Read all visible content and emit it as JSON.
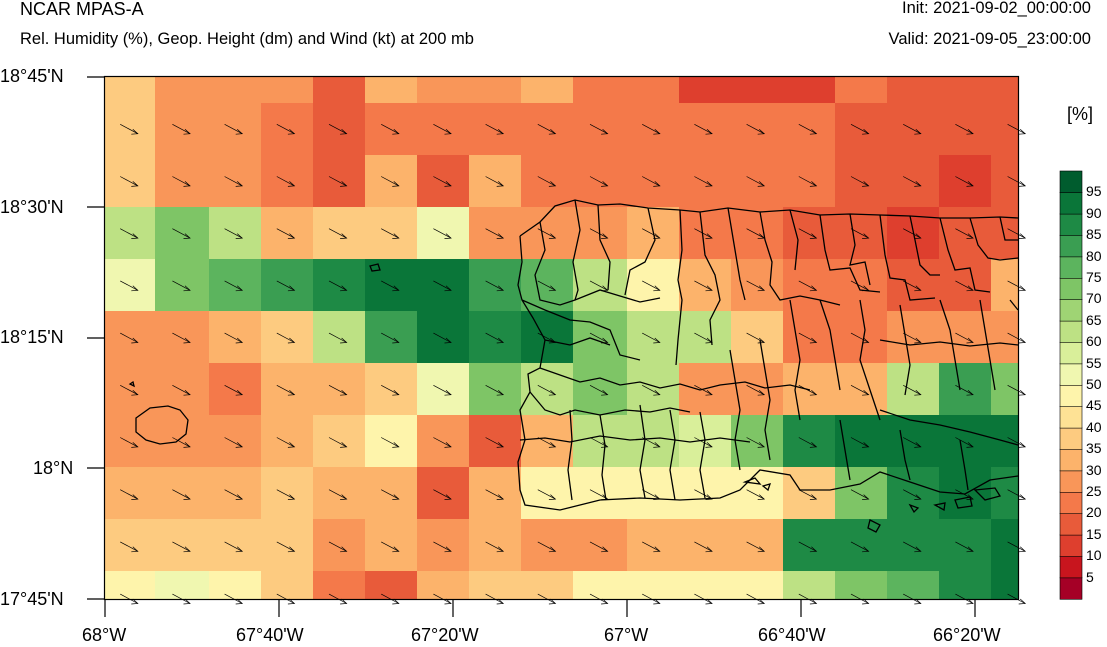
{
  "header": {
    "left_title": "NCAR MPAS-A",
    "left_subtitle": "Rel. Humidity (%), Geop. Height (dm) and Wind (kt) at 200 mb",
    "init": "Init: 2021-09-02_00:00:00",
    "valid": "Valid: 2021-09-05_23:00:00"
  },
  "axes": {
    "x_ticks": [
      "68°W",
      "67°40'W",
      "67°20'W",
      "67°W",
      "66°40'W",
      "66°20'W"
    ],
    "y_ticks": [
      "18°45'N",
      "18°30'N",
      "18°15'N",
      "18°N",
      "17°45'N"
    ]
  },
  "colorbar": {
    "unit": "[%]",
    "labels": [
      "5",
      "10",
      "15",
      "20",
      "25",
      "30",
      "35",
      "40",
      "45",
      "50",
      "55",
      "60",
      "65",
      "70",
      "75",
      "80",
      "85",
      "90",
      "95"
    ],
    "colors": [
      "#a50026",
      "#c8151e",
      "#de3f2e",
      "#e85b3a",
      "#f4794a",
      "#f99659",
      "#fcb36b",
      "#fdcb80",
      "#fee295",
      "#fef4ab",
      "#f0f7b0",
      "#d9ef9a",
      "#bde184",
      "#9fd474",
      "#7ec566",
      "#5cb45e",
      "#3a9e52",
      "#1e8a45",
      "#0a7639",
      "#005c2e"
    ]
  },
  "grid_colors": [
    "#fdcb80",
    "#f99659",
    "#f99659",
    "#f99659",
    "#e85b3a",
    "#fcb36b",
    "#f99659",
    "#f99659",
    "#fcb36b",
    "#f4794a",
    "#f4794a",
    "#de3f2e",
    "#de3f2e",
    "#de3f2e",
    "#f4794a",
    "#e85b3a",
    "#e85b3a",
    "#e85b3a",
    "#fdcb80",
    "#f99659",
    "#f99659",
    "#f4794a",
    "#e85b3a",
    "#f4794a",
    "#f4794a",
    "#f4794a",
    "#f4794a",
    "#f4794a",
    "#f4794a",
    "#f4794a",
    "#f4794a",
    "#f4794a",
    "#e85b3a",
    "#e85b3a",
    "#e85b3a",
    "#e85b3a",
    "#fdcb80",
    "#f99659",
    "#f99659",
    "#f4794a",
    "#e85b3a",
    "#fcb36b",
    "#e85b3a",
    "#fcb36b",
    "#f4794a",
    "#f4794a",
    "#f4794a",
    "#f4794a",
    "#f4794a",
    "#f4794a",
    "#e85b3a",
    "#e85b3a",
    "#de3f2e",
    "#e85b3a",
    "#bde184",
    "#7ec566",
    "#bde184",
    "#fcb36b",
    "#fdcb80",
    "#fdcb80",
    "#f0f7b0",
    "#f99659",
    "#f99659",
    "#f99659",
    "#fcb36b",
    "#f4794a",
    "#f4794a",
    "#e85b3a",
    "#e85b3a",
    "#de3f2e",
    "#e85b3a",
    "#e85b3a",
    "#f0f7b0",
    "#7ec566",
    "#5cb45e",
    "#3a9e52",
    "#1e8a45",
    "#0a7639",
    "#0a7639",
    "#3a9e52",
    "#5cb45e",
    "#bde184",
    "#fef4ab",
    "#fcb36b",
    "#f99659",
    "#f4794a",
    "#f4794a",
    "#e85b3a",
    "#e85b3a",
    "#fcb36b",
    "#f99659",
    "#f99659",
    "#fcb36b",
    "#fdcb80",
    "#bde184",
    "#3a9e52",
    "#0a7639",
    "#1e8a45",
    "#0a7639",
    "#7ec566",
    "#bde184",
    "#bde184",
    "#fdcb80",
    "#f4794a",
    "#f4794a",
    "#f99659",
    "#f99659",
    "#f99659",
    "#f99659",
    "#f99659",
    "#f4794a",
    "#fcb36b",
    "#fcb36b",
    "#fdcb80",
    "#f0f7b0",
    "#7ec566",
    "#bde184",
    "#7ec566",
    "#bde184",
    "#f99659",
    "#f99659",
    "#fcb36b",
    "#fcb36b",
    "#bde184",
    "#3a9e52",
    "#7ec566",
    "#f99659",
    "#f99659",
    "#f99659",
    "#fcb36b",
    "#fdcb80",
    "#fef4ab",
    "#f99659",
    "#e85b3a",
    "#fcb36b",
    "#bde184",
    "#bde184",
    "#d9ef9a",
    "#7ec566",
    "#1e8a45",
    "#0a7639",
    "#0a7639",
    "#0a7639",
    "#0a7639",
    "#fcb36b",
    "#fcb36b",
    "#fcb36b",
    "#fdcb80",
    "#fcb36b",
    "#fcb36b",
    "#e85b3a",
    "#fcb36b",
    "#fef4ab",
    "#fef4ab",
    "#fef4ab",
    "#fef4ab",
    "#fef4ab",
    "#fdcb80",
    "#7ec566",
    "#1e8a45",
    "#0a7639",
    "#1e8a45",
    "#fdcb80",
    "#fdcb80",
    "#fdcb80",
    "#fdcb80",
    "#f99659",
    "#fcb36b",
    "#f99659",
    "#fcb36b",
    "#f99659",
    "#f99659",
    "#fcb36b",
    "#fcb36b",
    "#fcb36b",
    "#1e8a45",
    "#1e8a45",
    "#1e8a45",
    "#1e8a45",
    "#0a7639",
    "#fef4ab",
    "#f0f7b0",
    "#fef4ab",
    "#fdcb80",
    "#f4794a",
    "#e85b3a",
    "#fcb36b",
    "#fdcb80",
    "#fdcb80",
    "#fef4ab",
    "#fef4ab",
    "#fef4ab",
    "#fef4ab",
    "#bde184",
    "#7ec566",
    "#5cb45e",
    "#1e8a45",
    "#0a7639"
  ]
}
